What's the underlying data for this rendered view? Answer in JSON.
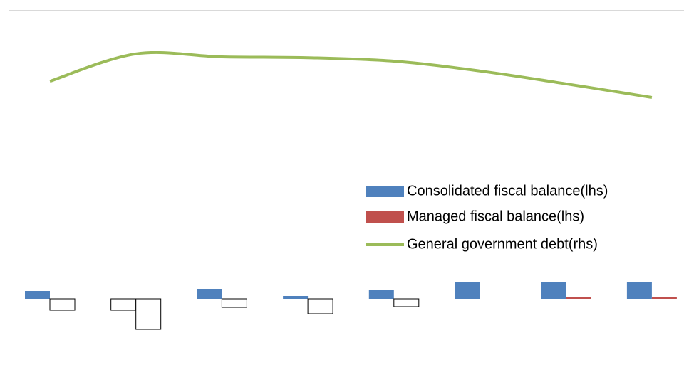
{
  "chart_data": {
    "type": "bar_line",
    "categories": [
      null,
      null,
      null,
      null,
      null,
      null,
      null,
      null
    ],
    "series": [
      {
        "name": "Consolidated fiscal balance(lhs)",
        "color": "#4f81bd",
        "type": "bar",
        "values": [
          1.1,
          -1.6,
          1.4,
          0.4,
          1.3,
          2.3,
          2.4,
          2.4
        ]
      },
      {
        "name": "Managed fiscal balance(lhs)",
        "color": "#c0504d",
        "type": "bar",
        "values": [
          -1.6,
          -4.3,
          -1.2,
          -2.1,
          -1.1,
          0,
          0.2,
          0.3
        ]
      },
      {
        "name": "General government debt(rhs)",
        "color": "#9bbb59",
        "type": "line",
        "axis": "y2",
        "values": [
          84.3,
          90.7,
          90,
          89.8,
          89,
          86.7,
          83.7,
          80.5
        ]
      }
    ],
    "ylim": [
      -8,
      40
    ],
    "y2lim": [
      20,
      100
    ],
    "invert_if_negative": true,
    "legend": "right"
  }
}
